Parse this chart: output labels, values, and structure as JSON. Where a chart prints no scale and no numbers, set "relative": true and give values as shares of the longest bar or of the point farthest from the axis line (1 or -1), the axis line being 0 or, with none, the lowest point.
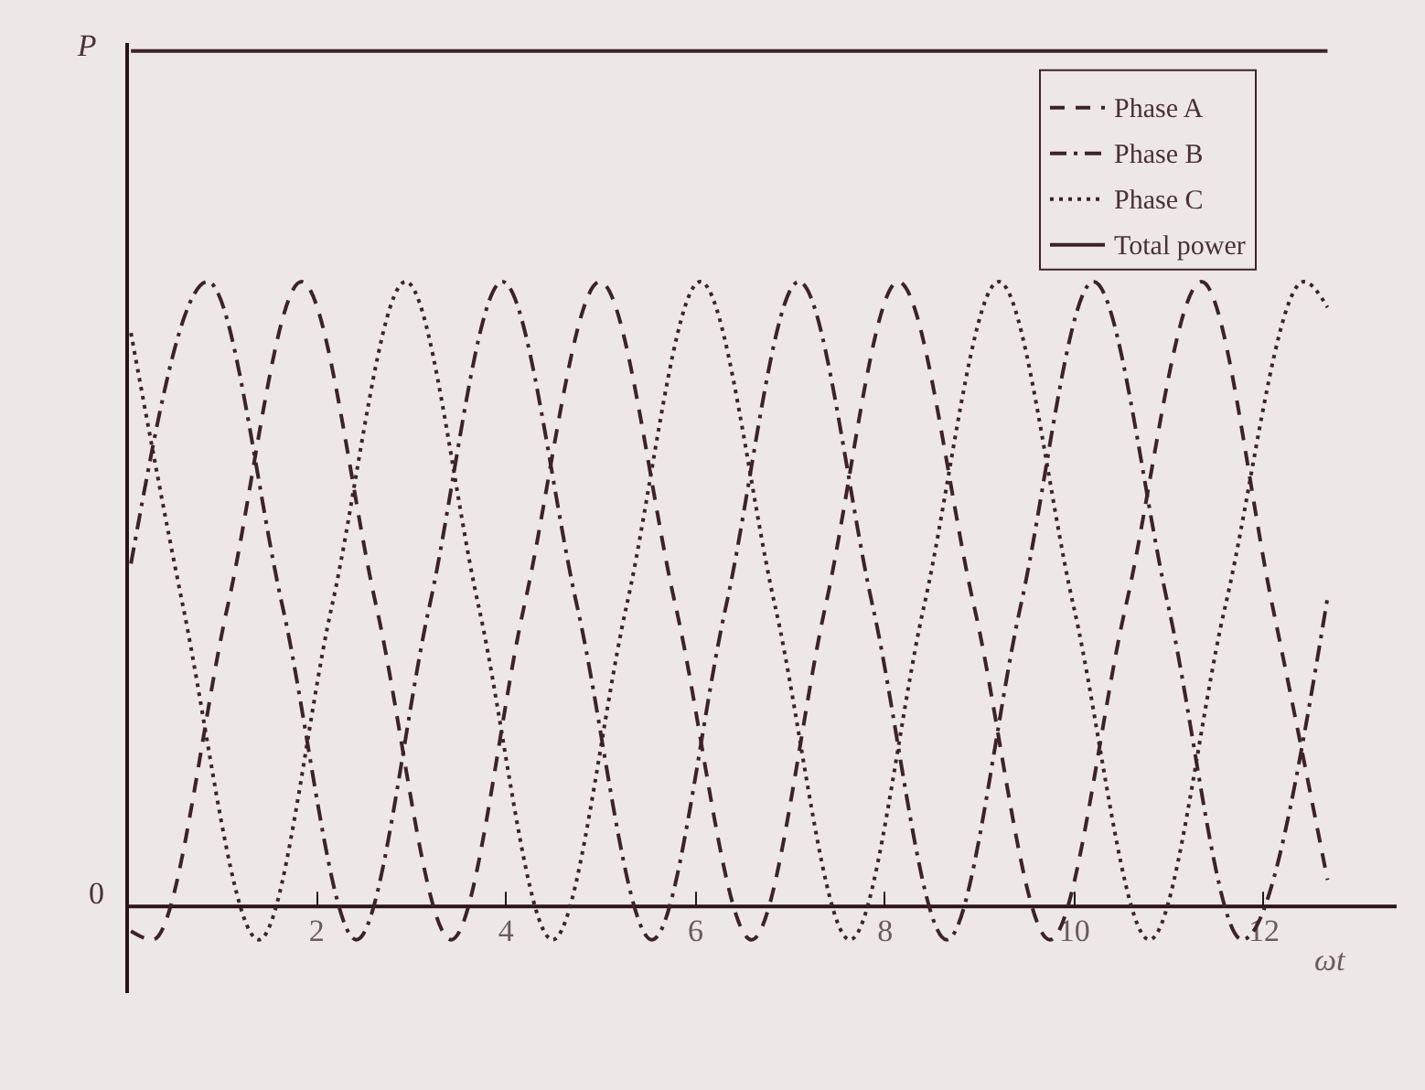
{
  "chart_data": {
    "type": "line",
    "relative": true,
    "xlabel": "ωt",
    "ylabel": "P",
    "annotations": [
      "0"
    ],
    "xlim": [
      0,
      13.4
    ],
    "xticks": [
      2,
      4,
      6,
      8,
      10,
      12
    ],
    "grid": false,
    "legend": "top right",
    "marker": "none",
    "series": [
      {
        "name": "Phase A",
        "color": "#3d2328",
        "line_style": "dashed",
        "x": [
          0.05,
          0.28,
          1.07,
          1.85,
          2.64,
          3.43,
          4.2,
          5.0,
          5.8,
          6.6,
          7.38,
          8.15,
          8.95,
          9.75,
          10.55,
          11.35,
          12.1,
          12.68
        ],
        "values": [
          -0.03,
          -0.04,
          0.35,
          0.73,
          0.35,
          -0.04,
          0.35,
          0.73,
          0.35,
          -0.04,
          0.35,
          0.73,
          0.35,
          -0.04,
          0.35,
          0.73,
          0.35,
          0.03
        ]
      },
      {
        "name": "Phase B",
        "color": "#3d2328",
        "line_style": "dashdot",
        "x": [
          0.05,
          0.86,
          1.65,
          2.43,
          3.2,
          3.97,
          4.76,
          5.55,
          6.33,
          7.1,
          7.88,
          8.66,
          9.44,
          10.21,
          11.0,
          11.78,
          12.68
        ],
        "values": [
          0.4,
          0.73,
          0.35,
          -0.04,
          0.35,
          0.73,
          0.35,
          -0.04,
          0.35,
          0.73,
          0.35,
          -0.04,
          0.35,
          0.73,
          0.35,
          -0.04,
          0.36
        ]
      },
      {
        "name": "Phase C",
        "color": "#3d2328",
        "line_style": "dotted",
        "x": [
          0.05,
          0.6,
          1.4,
          2.17,
          2.95,
          3.72,
          4.5,
          5.28,
          6.06,
          6.85,
          7.64,
          8.42,
          9.21,
          10.0,
          10.8,
          11.6,
          12.43,
          12.68
        ],
        "values": [
          0.67,
          0.35,
          -0.04,
          0.35,
          0.73,
          0.35,
          -0.04,
          0.35,
          0.73,
          0.35,
          -0.04,
          0.35,
          0.73,
          0.35,
          -0.04,
          0.35,
          0.73,
          0.7
        ]
      },
      {
        "name": "Total power",
        "color": "#3d2328",
        "line_style": "solid",
        "x": [
          0.05,
          12.68
        ],
        "values": [
          1,
          1
        ]
      }
    ]
  }
}
